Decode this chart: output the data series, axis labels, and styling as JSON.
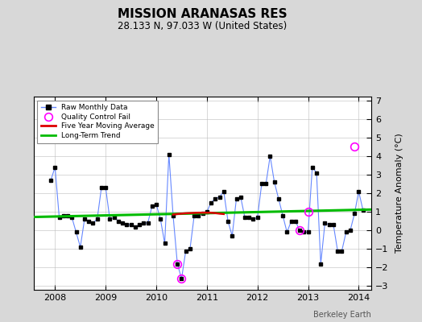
{
  "title": "MISSION ARANASAS RES",
  "subtitle": "28.133 N, 97.033 W (United States)",
  "ylabel": "Temperature Anomaly (°C)",
  "watermark": "Berkeley Earth",
  "ylim": [
    -3.2,
    7.2
  ],
  "yticks": [
    -3,
    -2,
    -1,
    0,
    1,
    2,
    3,
    4,
    5,
    6,
    7
  ],
  "xlim": [
    2007.58,
    2014.25
  ],
  "xticks": [
    2008,
    2009,
    2010,
    2011,
    2012,
    2013,
    2014
  ],
  "bg_color": "#d8d8d8",
  "plot_bg_color": "#ffffff",
  "raw_color": "#6688ff",
  "raw_marker_color": "#000000",
  "qc_color": "#ff00ff",
  "moving_avg_color": "#dd0000",
  "trend_color": "#00bb00",
  "raw_monthly": [
    [
      2007.917,
      2.7
    ],
    [
      2008.0,
      3.4
    ],
    [
      2008.083,
      0.7
    ],
    [
      2008.167,
      0.8
    ],
    [
      2008.25,
      0.8
    ],
    [
      2008.333,
      0.7
    ],
    [
      2008.417,
      -0.1
    ],
    [
      2008.5,
      -0.9
    ],
    [
      2008.583,
      0.6
    ],
    [
      2008.667,
      0.5
    ],
    [
      2008.75,
      0.4
    ],
    [
      2008.833,
      0.6
    ],
    [
      2008.917,
      2.3
    ],
    [
      2009.0,
      2.3
    ],
    [
      2009.083,
      0.6
    ],
    [
      2009.167,
      0.7
    ],
    [
      2009.25,
      0.5
    ],
    [
      2009.333,
      0.4
    ],
    [
      2009.417,
      0.3
    ],
    [
      2009.5,
      0.3
    ],
    [
      2009.583,
      0.2
    ],
    [
      2009.667,
      0.3
    ],
    [
      2009.75,
      0.4
    ],
    [
      2009.833,
      0.4
    ],
    [
      2009.917,
      1.3
    ],
    [
      2010.0,
      1.4
    ],
    [
      2010.083,
      0.6
    ],
    [
      2010.167,
      -0.7
    ],
    [
      2010.25,
      4.1
    ],
    [
      2010.333,
      0.8
    ],
    [
      2010.417,
      -1.8
    ],
    [
      2010.5,
      -2.6
    ],
    [
      2010.583,
      -1.1
    ],
    [
      2010.667,
      -1.0
    ],
    [
      2010.75,
      0.8
    ],
    [
      2010.833,
      0.8
    ],
    [
      2010.917,
      0.9
    ],
    [
      2011.0,
      1.0
    ],
    [
      2011.083,
      1.5
    ],
    [
      2011.167,
      1.7
    ],
    [
      2011.25,
      1.8
    ],
    [
      2011.333,
      2.1
    ],
    [
      2011.417,
      0.5
    ],
    [
      2011.5,
      -0.3
    ],
    [
      2011.583,
      1.7
    ],
    [
      2011.667,
      1.8
    ],
    [
      2011.75,
      0.7
    ],
    [
      2011.833,
      0.7
    ],
    [
      2011.917,
      0.6
    ],
    [
      2012.0,
      0.7
    ],
    [
      2012.083,
      2.5
    ],
    [
      2012.167,
      2.5
    ],
    [
      2012.25,
      4.0
    ],
    [
      2012.333,
      2.6
    ],
    [
      2012.417,
      1.7
    ],
    [
      2012.5,
      0.8
    ],
    [
      2012.583,
      -0.1
    ],
    [
      2012.667,
      0.5
    ],
    [
      2012.75,
      0.5
    ],
    [
      2012.833,
      0.0
    ],
    [
      2012.917,
      -0.1
    ],
    [
      2013.0,
      -0.1
    ],
    [
      2013.083,
      3.4
    ],
    [
      2013.167,
      3.1
    ],
    [
      2013.25,
      -1.8
    ],
    [
      2013.333,
      0.4
    ],
    [
      2013.417,
      0.3
    ],
    [
      2013.5,
      0.3
    ],
    [
      2013.583,
      -1.1
    ],
    [
      2013.667,
      -1.1
    ],
    [
      2013.75,
      -0.1
    ],
    [
      2013.833,
      0.0
    ],
    [
      2013.917,
      0.9
    ],
    [
      2014.0,
      2.1
    ],
    [
      2014.083,
      1.1
    ]
  ],
  "qc_fail": [
    [
      2010.417,
      -1.8
    ],
    [
      2010.5,
      -2.6
    ],
    [
      2012.833,
      0.0
    ],
    [
      2013.0,
      1.0
    ],
    [
      2013.917,
      4.5
    ]
  ],
  "moving_avg": [
    [
      2010.333,
      0.85
    ],
    [
      2010.417,
      0.88
    ],
    [
      2010.5,
      0.9
    ],
    [
      2010.583,
      0.92
    ],
    [
      2010.667,
      0.93
    ],
    [
      2010.75,
      0.94
    ],
    [
      2010.833,
      0.95
    ],
    [
      2010.917,
      0.95
    ],
    [
      2011.0,
      0.95
    ],
    [
      2011.083,
      0.95
    ],
    [
      2011.167,
      0.93
    ],
    [
      2011.25,
      0.9
    ],
    [
      2011.333,
      0.88
    ]
  ],
  "trend_x": [
    2007.58,
    2014.25
  ],
  "trend_y": [
    0.72,
    1.12
  ]
}
